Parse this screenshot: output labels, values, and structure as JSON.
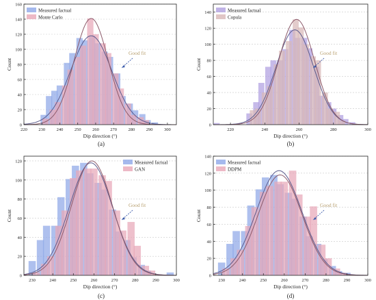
{
  "chart_data": [
    {
      "panel": "(a)",
      "type": "bar",
      "xlabel": "Dip direction (°)",
      "ylabel": "Count",
      "xlim": [
        220,
        305
      ],
      "ylim": [
        0,
        160
      ],
      "xticks": [
        220,
        230,
        240,
        250,
        260,
        270,
        280,
        290,
        300
      ],
      "yticks": [
        0,
        20,
        40,
        60,
        80,
        100,
        120,
        140,
        160
      ],
      "grid": true,
      "legend": "top-left",
      "annotation": "Good fit",
      "bin_width": 3.5,
      "series": [
        {
          "name": "Measured factual",
          "color": "#8fa8e8",
          "bins": [
            [
              231,
              13
            ],
            [
              234,
              38
            ],
            [
              237,
              45
            ],
            [
              240,
              52
            ],
            [
              244,
              82
            ],
            [
              247,
              95
            ],
            [
              251,
              115
            ],
            [
              254,
              112
            ],
            [
              258,
              118
            ],
            [
              261,
              108
            ],
            [
              265,
              97
            ],
            [
              268,
              90
            ],
            [
              272,
              68
            ],
            [
              275,
              38
            ],
            [
              279,
              28
            ],
            [
              282,
              19
            ],
            [
              286,
              14
            ],
            [
              289,
              6
            ],
            [
              293,
              3
            ]
          ],
          "fit": {
            "mean": 257.5,
            "sd": 11.5,
            "peak": 118
          }
        },
        {
          "name": "Monte Carlo",
          "color": "#e8a8b8",
          "bins": [
            [
              232,
              8
            ],
            [
              236,
              20
            ],
            [
              239,
              30
            ],
            [
              243,
              52
            ],
            [
              246,
              73
            ],
            [
              250,
              90
            ],
            [
              253,
              105
            ],
            [
              257,
              141
            ],
            [
              260,
              120
            ],
            [
              264,
              108
            ],
            [
              267,
              95
            ],
            [
              271,
              68
            ],
            [
              274,
              48
            ],
            [
              278,
              28
            ],
            [
              281,
              13
            ],
            [
              285,
              10
            ],
            [
              288,
              6
            ]
          ],
          "fit": {
            "mean": 257.5,
            "sd": 9.5,
            "peak": 141
          }
        }
      ]
    },
    {
      "panel": "(b)",
      "type": "bar",
      "xlabel": "Dip direction (°)",
      "ylabel": "Count",
      "xlim": [
        210,
        300
      ],
      "ylim": [
        0,
        150
      ],
      "xticks": [
        220,
        240,
        260,
        280,
        300
      ],
      "yticks": [
        0,
        20,
        40,
        60,
        80,
        100,
        120,
        140
      ],
      "grid": true,
      "legend": "top-left",
      "annotation": "Good fit",
      "bin_width": 3.5,
      "series": [
        {
          "name": "Measured factual",
          "color": "#b0a0e0",
          "bins": [
            [
              212,
              2
            ],
            [
              231,
              14
            ],
            [
              235,
              28
            ],
            [
              238,
              52
            ],
            [
              242,
              72
            ],
            [
              245,
              80
            ],
            [
              249,
              80
            ],
            [
              252,
              94
            ],
            [
              256,
              118
            ],
            [
              259,
              108
            ],
            [
              263,
              108
            ],
            [
              266,
              95
            ],
            [
              270,
              72
            ],
            [
              273,
              36
            ],
            [
              277,
              28
            ],
            [
              280,
              20
            ],
            [
              284,
              12
            ],
            [
              287,
              7
            ],
            [
              291,
              3
            ]
          ],
          "fit": {
            "mean": 257.5,
            "sd": 11.0,
            "peak": 118
          }
        },
        {
          "name": "Copula",
          "color": "#d8b8b8",
          "bins": [
            [
              233,
              18
            ],
            [
              236,
              20
            ],
            [
              240,
              40
            ],
            [
              243,
              48
            ],
            [
              247,
              75
            ],
            [
              250,
              92
            ],
            [
              254,
              104
            ],
            [
              258,
              131
            ],
            [
              261,
              121
            ],
            [
              264,
              100
            ],
            [
              268,
              85
            ],
            [
              271,
              80
            ],
            [
              275,
              40
            ],
            [
              278,
              20
            ],
            [
              282,
              16
            ],
            [
              285,
              5
            ]
          ],
          "fit": {
            "mean": 258.5,
            "sd": 10.5,
            "peak": 131
          }
        }
      ]
    },
    {
      "panel": "(c)",
      "type": "bar",
      "xlabel": "Dip direction (°)",
      "ylabel": "Count",
      "xlim": [
        226,
        300
      ],
      "ylim": [
        0,
        125
      ],
      "xticks": [
        230,
        240,
        250,
        260,
        270,
        280,
        290,
        300
      ],
      "yticks": [
        0,
        20,
        40,
        60,
        80,
        100,
        120
      ],
      "grid": true,
      "legend": "top-right",
      "annotation": "Good fit",
      "bin_width": 3.5,
      "series": [
        {
          "name": "Measured factual",
          "color": "#8fa8e8",
          "bins": [
            [
              230,
              15
            ],
            [
              234,
              37
            ],
            [
              237,
              52
            ],
            [
              241,
              52
            ],
            [
              244,
              82
            ],
            [
              248,
              101
            ],
            [
              251,
              115
            ],
            [
              255,
              118
            ],
            [
              258,
              107
            ],
            [
              262,
              97
            ],
            [
              265,
              90
            ],
            [
              269,
              69
            ],
            [
              272,
              46
            ],
            [
              276,
              37
            ],
            [
              279,
              19
            ],
            [
              283,
              11
            ],
            [
              286,
              5
            ],
            [
              297,
              3
            ]
          ],
          "fit": {
            "mean": 258.5,
            "sd": 10.5,
            "peak": 118
          }
        },
        {
          "name": "GAN",
          "color": "#e8a8b8",
          "bins": [
            [
              232,
              3
            ],
            [
              236,
              12
            ],
            [
              239,
              20
            ],
            [
              243,
              52
            ],
            [
              246,
              68
            ],
            [
              250,
              102
            ],
            [
              253,
              110
            ],
            [
              257,
              112
            ],
            [
              260,
              112
            ],
            [
              264,
              105
            ],
            [
              267,
              99
            ],
            [
              271,
              68
            ],
            [
              274,
              47
            ],
            [
              278,
              56
            ],
            [
              281,
              31
            ],
            [
              285,
              10
            ],
            [
              288,
              5
            ]
          ],
          "fit": {
            "mean": 259.0,
            "sd": 10.0,
            "peak": 120
          }
        }
      ]
    },
    {
      "panel": "(d)",
      "type": "bar",
      "xlabel": "Dip direction (°)",
      "ylabel": "Count",
      "xlim": [
        226,
        300
      ],
      "ylim": [
        0,
        140
      ],
      "xticks": [
        230,
        240,
        250,
        260,
        270,
        280,
        290,
        300
      ],
      "yticks": [
        0,
        20,
        40,
        60,
        80,
        100,
        120,
        140
      ],
      "grid": true,
      "legend": "top-left",
      "annotation": "Good fit",
      "bin_width": 3.5,
      "series": [
        {
          "name": "Measured factual",
          "color": "#8fa8e8",
          "bins": [
            [
              230,
              15
            ],
            [
              234,
              37
            ],
            [
              237,
              52
            ],
            [
              241,
              52
            ],
            [
              244,
              82
            ],
            [
              248,
              101
            ],
            [
              251,
              115
            ],
            [
              255,
              118
            ],
            [
              258,
              107
            ],
            [
              262,
              97
            ],
            [
              265,
              90
            ],
            [
              269,
              69
            ],
            [
              272,
              46
            ],
            [
              276,
              37
            ],
            [
              279,
              19
            ],
            [
              283,
              11
            ],
            [
              286,
              5
            ],
            [
              290,
              3
            ]
          ],
          "fit": {
            "mean": 257.5,
            "sd": 11.0,
            "peak": 123
          }
        },
        {
          "name": "DDPM",
          "color": "#e8a8b8",
          "bins": [
            [
              232,
              8
            ],
            [
              236,
              20
            ],
            [
              239,
              30
            ],
            [
              243,
              58
            ],
            [
              246,
              80
            ],
            [
              250,
              98
            ],
            [
              253,
              105
            ],
            [
              257,
              110
            ],
            [
              260,
              110
            ],
            [
              264,
              123
            ],
            [
              267,
              95
            ],
            [
              271,
              69
            ],
            [
              274,
              81
            ],
            [
              278,
              36
            ],
            [
              281,
              20
            ],
            [
              285,
              8
            ],
            [
              288,
              3
            ]
          ],
          "fit": {
            "mean": 258.0,
            "sd": 10.5,
            "peak": 118
          }
        }
      ]
    }
  ]
}
